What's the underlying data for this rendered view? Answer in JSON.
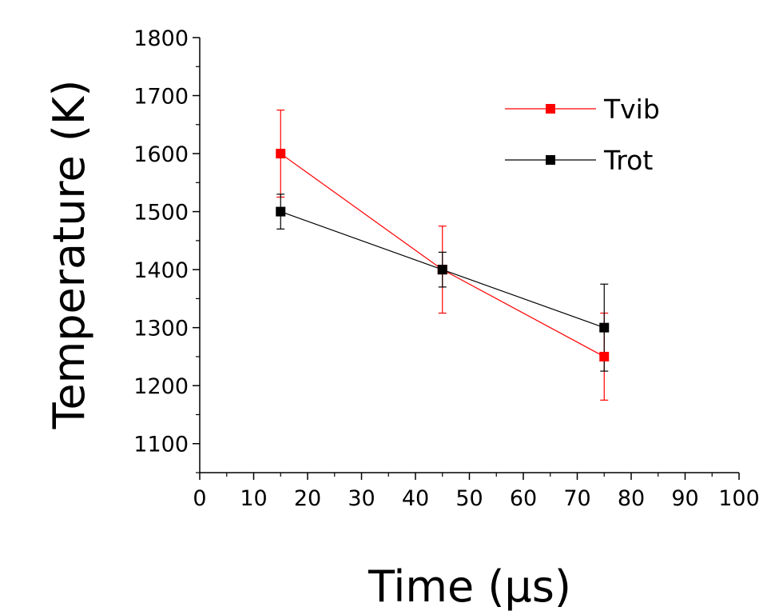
{
  "chart_data": {
    "type": "line",
    "xlabel": "Time (μs)",
    "ylabel": "Temperature (K)",
    "xlim": [
      0,
      100
    ],
    "ylim": [
      1050,
      1800
    ],
    "x_ticks": [
      0,
      10,
      20,
      30,
      40,
      50,
      60,
      70,
      80,
      90,
      100
    ],
    "y_ticks": [
      1100,
      1200,
      1300,
      1400,
      1500,
      1600,
      1700,
      1800
    ],
    "grid": false,
    "legend_position": "top-right",
    "series": [
      {
        "name": "Tvib",
        "color": "#ff0000",
        "marker": "square",
        "points": [
          {
            "x": 15,
            "y": 1600,
            "err": 75
          },
          {
            "x": 45,
            "y": 1400,
            "err": 75
          },
          {
            "x": 75,
            "y": 1250,
            "err": 75
          }
        ]
      },
      {
        "name": "Trot",
        "color": "#000000",
        "marker": "square",
        "points": [
          {
            "x": 15,
            "y": 1500,
            "err": 30
          },
          {
            "x": 45,
            "y": 1400,
            "err": 30
          },
          {
            "x": 75,
            "y": 1300,
            "err": 75
          }
        ]
      }
    ]
  }
}
